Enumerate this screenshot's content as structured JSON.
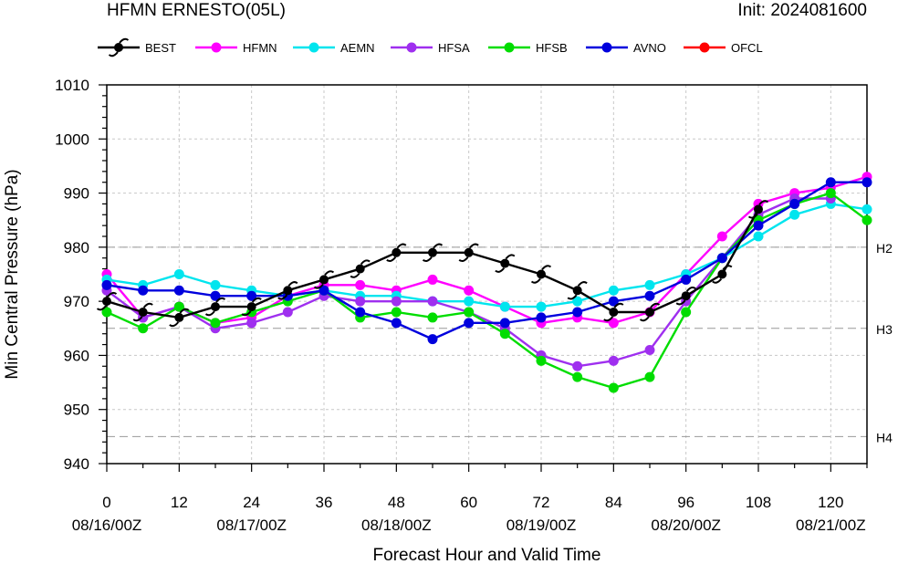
{
  "header": {
    "title": "HFMN ERNESTO(05L)",
    "init": "Init: 2024081600"
  },
  "chart_data": {
    "type": "line",
    "title": "HFMN ERNESTO(05L)",
    "xlabel": "Forecast Hour and Valid Time",
    "ylabel": "Min Central Pressure (hPa)",
    "xlim": [
      0,
      126
    ],
    "ylim": [
      940,
      1010
    ],
    "x_ticks": [
      0,
      12,
      24,
      36,
      48,
      60,
      72,
      84,
      96,
      108,
      120
    ],
    "y_ticks": [
      940,
      950,
      960,
      970,
      980,
      990,
      1000,
      1010
    ],
    "date_ticks": [
      {
        "x": 0,
        "label": "08/16/00Z"
      },
      {
        "x": 24,
        "label": "08/17/00Z"
      },
      {
        "x": 48,
        "label": "08/18/00Z"
      },
      {
        "x": 72,
        "label": "08/19/00Z"
      },
      {
        "x": 96,
        "label": "08/20/00Z"
      },
      {
        "x": 120,
        "label": "08/21/00Z"
      }
    ],
    "grid": true,
    "legend_position": "top",
    "categories": [
      {
        "label": "H2",
        "value": 980
      },
      {
        "label": "H3",
        "value": 965
      },
      {
        "label": "H4",
        "value": 945
      }
    ],
    "series": [
      {
        "name": "BEST",
        "color": "#000000",
        "marker": "hurricane-icon",
        "x": [
          0,
          6,
          12,
          18,
          24,
          30,
          36,
          42,
          48,
          54,
          60,
          66,
          72,
          78,
          84,
          90,
          96,
          102,
          108
        ],
        "y": [
          970,
          968,
          967,
          969,
          969,
          972,
          974,
          976,
          979,
          979,
          979,
          977,
          975,
          972,
          968,
          968,
          971,
          975,
          987
        ]
      },
      {
        "name": "HFMN",
        "color": "#ff00ff",
        "marker": "dot",
        "x": [
          0,
          6,
          12,
          18,
          24,
          30,
          36,
          42,
          48,
          54,
          60,
          66,
          72,
          78,
          84,
          90,
          96,
          102,
          108,
          114,
          120,
          126
        ],
        "y": [
          975,
          967,
          969,
          966,
          967,
          971,
          973,
          973,
          972,
          974,
          972,
          969,
          966,
          967,
          966,
          968,
          975,
          982,
          988,
          990,
          991,
          993
        ]
      },
      {
        "name": "AEMN",
        "color": "#00e5ee",
        "marker": "dot",
        "x": [
          0,
          6,
          12,
          18,
          24,
          30,
          36,
          42,
          48,
          54,
          60,
          66,
          72,
          78,
          84,
          90,
          96,
          102,
          108,
          114,
          120,
          126
        ],
        "y": [
          974,
          973,
          975,
          973,
          972,
          971,
          972,
          971,
          971,
          970,
          970,
          969,
          969,
          970,
          972,
          973,
          975,
          978,
          982,
          986,
          988,
          987
        ]
      },
      {
        "name": "HFSA",
        "color": "#9f2fef",
        "marker": "dot",
        "x": [
          0,
          6,
          12,
          18,
          24,
          30,
          36,
          42,
          48,
          54,
          60,
          66,
          72,
          78,
          84,
          90,
          96,
          102,
          108,
          114,
          120
        ],
        "y": [
          972,
          967,
          969,
          965,
          966,
          968,
          971,
          970,
          970,
          970,
          968,
          965,
          960,
          958,
          959,
          961,
          970,
          978,
          986,
          989,
          989
        ]
      },
      {
        "name": "HFSB",
        "color": "#00dd00",
        "marker": "dot",
        "x": [
          0,
          6,
          12,
          18,
          24,
          30,
          36,
          42,
          48,
          54,
          60,
          66,
          72,
          78,
          84,
          90,
          96,
          102,
          108,
          114,
          120,
          126
        ],
        "y": [
          968,
          965,
          969,
          966,
          968,
          970,
          972,
          967,
          968,
          967,
          968,
          964,
          959,
          956,
          954,
          956,
          968,
          978,
          985,
          988,
          990,
          985
        ]
      },
      {
        "name": "AVNO",
        "color": "#0000dd",
        "marker": "dot",
        "x": [
          0,
          6,
          12,
          18,
          24,
          30,
          36,
          42,
          48,
          54,
          60,
          66,
          72,
          78,
          84,
          90,
          96,
          102,
          108,
          114,
          120,
          126
        ],
        "y": [
          973,
          972,
          972,
          971,
          971,
          971,
          972,
          968,
          966,
          963,
          966,
          966,
          967,
          968,
          970,
          971,
          974,
          978,
          984,
          988,
          992,
          992
        ]
      },
      {
        "name": "OFCL",
        "color": "#ff0000",
        "marker": "dot",
        "x": [],
        "y": []
      }
    ]
  }
}
